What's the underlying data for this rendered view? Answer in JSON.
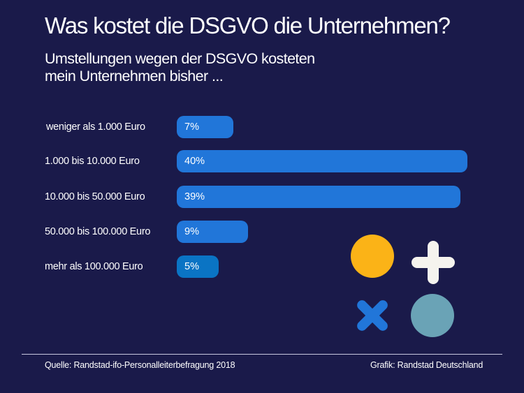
{
  "header": {
    "title": "Was kostet die DSGVO die Unternehmen?",
    "subtitle_line1": "Umstellungen wegen der DSGVO kosteten",
    "subtitle_line2": "mein Unternehmen bisher ..."
  },
  "chart_data": {
    "type": "bar",
    "orientation": "horizontal",
    "title": "Was kostet die DSGVO die Unternehmen?",
    "subtitle": "Umstellungen wegen der DSGVO kosteten mein Unternehmen bisher ...",
    "categories": [
      "weniger als 1.000 Euro",
      "1.000 bis 10.000 Euro",
      "10.000 bis 50.000 Euro",
      "50.000 bis 100.000 Euro",
      "mehr als 100.000 Euro"
    ],
    "values": [
      7,
      40,
      39,
      9,
      5
    ],
    "value_labels": [
      "7%",
      "40%",
      "39%",
      "9%",
      "5%"
    ],
    "unit": "%",
    "xlabel": "",
    "ylabel": "",
    "grid": false,
    "bar_colors": [
      "#2176d9",
      "#2176d9",
      "#2176d9",
      "#2176d9",
      "#0a74c4"
    ]
  },
  "decorations": {
    "yellow_circle_color": "#fbb317",
    "plus_color": "#f5f3ee",
    "cross_color": "#2176d9",
    "teal_circle_color": "#6aa3b6"
  },
  "footer": {
    "source": "Quelle: Randstad-ifo-Personalleiterbefragung 2018",
    "credit": "Grafik: Randstad Deutschland"
  },
  "colors": {
    "background": "#1a1a4a",
    "text": "#ffffff"
  }
}
